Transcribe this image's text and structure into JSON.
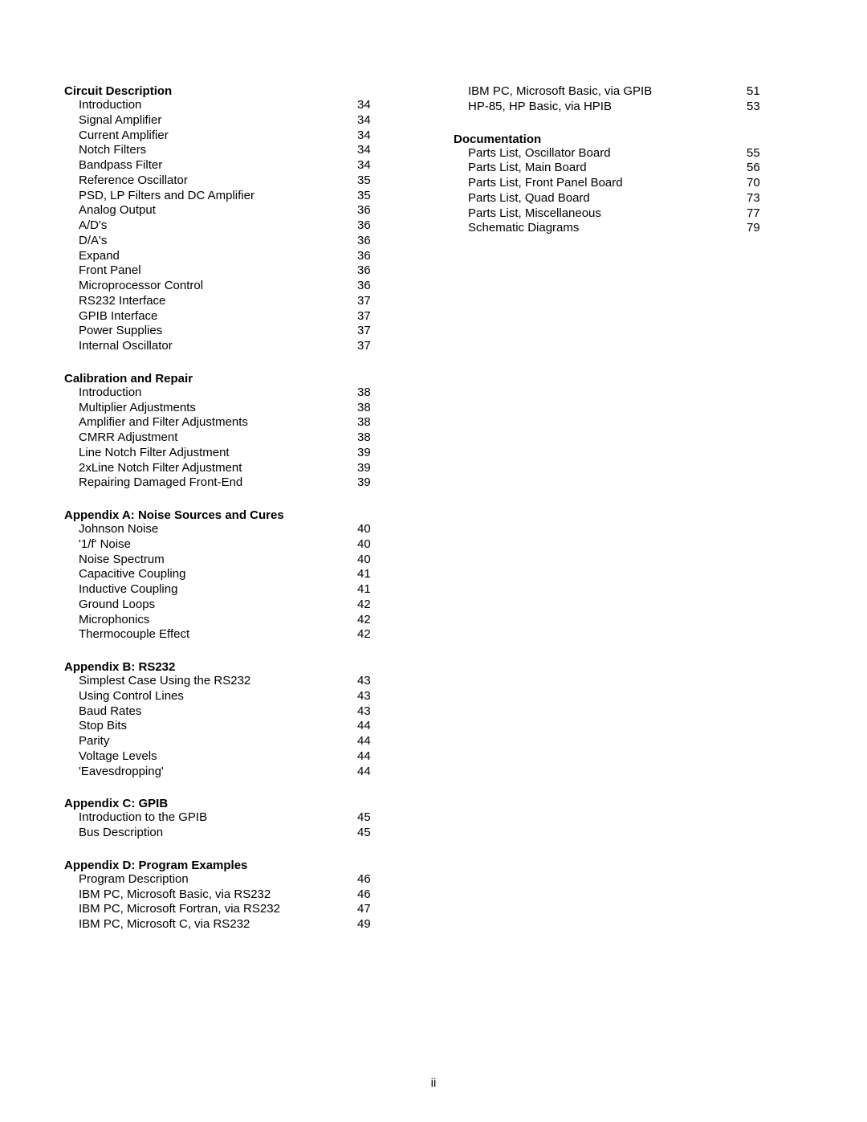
{
  "page_number": "ii",
  "columns": [
    {
      "sections": [
        {
          "title": "Circuit Description",
          "entries": [
            {
              "label": "Introduction",
              "page": "34"
            },
            {
              "label": "Signal Amplifier",
              "page": "34"
            },
            {
              "label": "Current Amplifier",
              "page": "34"
            },
            {
              "label": "Notch Filters",
              "page": "34"
            },
            {
              "label": "Bandpass Filter",
              "page": "34"
            },
            {
              "label": "Reference Oscillator",
              "page": "35"
            },
            {
              "label": "PSD, LP Filters and DC Amplifier",
              "page": "35"
            },
            {
              "label": "Analog Output",
              "page": "36"
            },
            {
              "label": "A/D's",
              "page": "36"
            },
            {
              "label": "D/A's",
              "page": "36"
            },
            {
              "label": "Expand",
              "page": "36"
            },
            {
              "label": "Front Panel",
              "page": "36"
            },
            {
              "label": "Microprocessor Control",
              "page": "36"
            },
            {
              "label": "RS232 Interface",
              "page": "37"
            },
            {
              "label": "GPIB Interface",
              "page": "37"
            },
            {
              "label": "Power Supplies",
              "page": "37"
            },
            {
              "label": "Internal Oscillator",
              "page": "37"
            }
          ]
        },
        {
          "title": "Calibration and Repair",
          "entries": [
            {
              "label": "Introduction",
              "page": "38"
            },
            {
              "label": "Multiplier Adjustments",
              "page": "38"
            },
            {
              "label": "Amplifier and Filter Adjustments",
              "page": "38"
            },
            {
              "label": "CMRR Adjustment",
              "page": "38"
            },
            {
              "label": "Line Notch Filter Adjustment",
              "page": "39"
            },
            {
              "label": "2xLine Notch Filter Adjustment",
              "page": "39"
            },
            {
              "label": "Repairing Damaged Front-End",
              "page": "39"
            }
          ]
        },
        {
          "title": "Appendix A: Noise Sources and Cures",
          "entries": [
            {
              "label": "Johnson Noise",
              "page": "40"
            },
            {
              "label": "'1/f' Noise",
              "page": "40"
            },
            {
              "label": "Noise Spectrum",
              "page": "40"
            },
            {
              "label": "Capacitive Coupling",
              "page": "41"
            },
            {
              "label": "Inductive Coupling",
              "page": "41"
            },
            {
              "label": "Ground Loops",
              "page": "42"
            },
            {
              "label": "Microphonics",
              "page": "42"
            },
            {
              "label": "Thermocouple Effect",
              "page": "42"
            }
          ]
        },
        {
          "title": "Appendix B: RS232",
          "entries": [
            {
              "label": "Simplest Case Using the RS232",
              "page": "43"
            },
            {
              "label": "Using Control Lines",
              "page": "43"
            },
            {
              "label": "Baud Rates",
              "page": "43"
            },
            {
              "label": "Stop Bits",
              "page": "44"
            },
            {
              "label": "Parity",
              "page": "44"
            },
            {
              "label": "Voltage Levels",
              "page": "44"
            },
            {
              "label": "'Eavesdropping'",
              "page": "44"
            }
          ]
        },
        {
          "title": "Appendix C: GPIB",
          "entries": [
            {
              "label": "Introduction to the GPIB",
              "page": "45"
            },
            {
              "label": "Bus Description",
              "page": "45"
            }
          ]
        },
        {
          "title": "Appendix D: Program Examples",
          "entries": [
            {
              "label": "Program Description",
              "page": "46"
            },
            {
              "label": "IBM PC, Microsoft Basic, via RS232",
              "page": "46"
            },
            {
              "label": "IBM PC, Microsoft Fortran, via RS232",
              "page": "47"
            },
            {
              "label": "IBM PC, Microsoft C, via RS232",
              "page": "49"
            }
          ]
        }
      ]
    },
    {
      "sections": [
        {
          "title": null,
          "entries": [
            {
              "label": "IBM PC, Microsoft Basic, via GPIB",
              "page": "51"
            },
            {
              "label": "HP-85, HP Basic, via HPIB",
              "page": "53"
            }
          ]
        },
        {
          "title": "Documentation",
          "entries": [
            {
              "label": "Parts List, Oscillator Board",
              "page": "55"
            },
            {
              "label": "Parts List, Main Board",
              "page": "56"
            },
            {
              "label": "Parts List, Front Panel Board",
              "page": "70"
            },
            {
              "label": "Parts List, Quad Board",
              "page": "73"
            },
            {
              "label": "Parts List, Miscellaneous",
              "page": "77"
            },
            {
              "label": "Schematic Diagrams",
              "page": "79"
            }
          ]
        }
      ]
    }
  ]
}
